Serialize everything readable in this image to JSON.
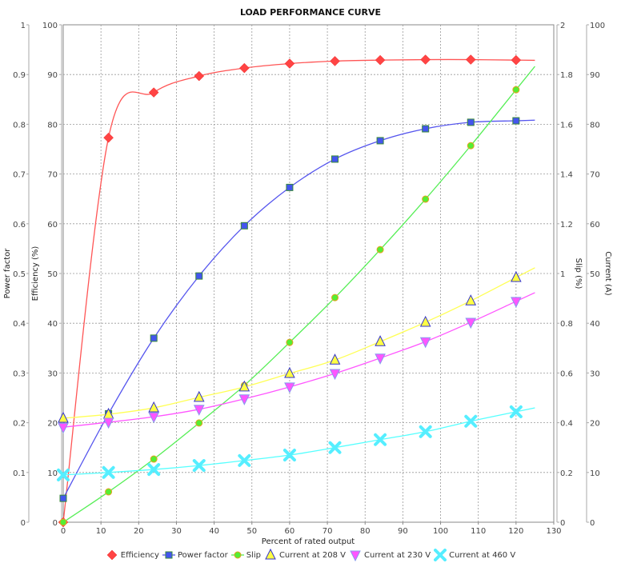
{
  "chart_data": {
    "type": "scatter",
    "title": "LOAD PERFORMANCE CURVE",
    "xlabel": "Percent of rated output",
    "xlim": [
      0,
      130
    ],
    "x_ticks": [
      0,
      10,
      20,
      30,
      40,
      50,
      60,
      70,
      80,
      90,
      100,
      110,
      120,
      130
    ],
    "grid": true,
    "legend_position": "bottom",
    "axes": {
      "left_outer": {
        "label": "Power factor",
        "range": [
          0,
          1
        ],
        "ticks": [
          "0",
          "0.1",
          "0.2",
          "0.3",
          "0.4",
          "0.5",
          "0.6",
          "0.7",
          "0.8",
          "0.9",
          "1"
        ]
      },
      "left_inner": {
        "label": "Efficiency (%)",
        "range": [
          0,
          100
        ],
        "ticks": [
          "0",
          "10",
          "20",
          "30",
          "40",
          "50",
          "60",
          "70",
          "80",
          "90",
          "100"
        ]
      },
      "right_inner": {
        "label": "Slip (%)",
        "range": [
          0,
          2
        ],
        "ticks": [
          "0",
          "0.2",
          "0.4",
          "0.6",
          "0.8",
          "1",
          "1.2",
          "1.4",
          "1.6",
          "1.8",
          "2"
        ]
      },
      "right_outer": {
        "label": "Current (A)",
        "range": [
          0,
          100
        ],
        "ticks": [
          "0",
          "10",
          "20",
          "30",
          "40",
          "50",
          "60",
          "70",
          "80",
          "90",
          "100"
        ]
      }
    },
    "x": [
      0,
      12,
      24,
      36,
      48,
      60,
      72,
      84,
      96,
      108,
      120
    ],
    "series": [
      {
        "name": "Efficiency",
        "axis": "left_inner",
        "color": "#ff4444",
        "line_color": "#ff5555",
        "marker": "diamond",
        "values": [
          0,
          77.3,
          86.4,
          89.7,
          91.3,
          92.2,
          92.7,
          92.9,
          93.0,
          93.0,
          92.9
        ]
      },
      {
        "name": "Power factor",
        "axis": "left_outer",
        "color": "#4455ee",
        "line_color": "#5555ee",
        "marker": "square",
        "values": [
          0.048,
          0.218,
          0.37,
          0.495,
          0.596,
          0.673,
          0.73,
          0.767,
          0.791,
          0.804,
          0.807
        ]
      },
      {
        "name": "Slip",
        "axis": "right_inner",
        "color": "#55ee33",
        "line_color": "#55ee55",
        "marker": "circle",
        "values": [
          0,
          0.122,
          0.254,
          0.399,
          0.55,
          0.723,
          0.903,
          1.096,
          1.299,
          1.514,
          1.739
        ]
      },
      {
        "name": "Current at 208 V",
        "axis": "right_outer",
        "color": "#ffff44",
        "line_color": "#ffff55",
        "marker": "triangle-up",
        "values": [
          20.9,
          21.7,
          23.0,
          25.1,
          27.2,
          29.9,
          32.6,
          36.3,
          40.2,
          44.5,
          49.2
        ]
      },
      {
        "name": "Current at 230 V",
        "axis": "right_outer",
        "color": "#ff55ff",
        "line_color": "#ff55ff",
        "marker": "triangle-down",
        "values": [
          19.1,
          20.1,
          21.2,
          22.7,
          24.8,
          27.2,
          29.9,
          33.0,
          36.3,
          40.2,
          44.4
        ]
      },
      {
        "name": "Current at 460 V",
        "axis": "right_outer",
        "color": "#55eeff",
        "line_color": "#55ffff",
        "marker": "x",
        "values": [
          9.5,
          10.0,
          10.6,
          11.4,
          12.4,
          13.5,
          15.0,
          16.6,
          18.2,
          20.3,
          22.2
        ]
      }
    ]
  },
  "legend": {
    "items": [
      {
        "label": "Efficiency",
        "icon": "diamond-icon"
      },
      {
        "label": "Power factor",
        "icon": "square-icon"
      },
      {
        "label": "Slip",
        "icon": "circle-icon"
      },
      {
        "label": "Current at 208 V",
        "icon": "triangle-up-icon"
      },
      {
        "label": "Current at 230 V",
        "icon": "triangle-down-icon"
      },
      {
        "label": "Current at 460 V",
        "icon": "x-icon"
      }
    ]
  }
}
